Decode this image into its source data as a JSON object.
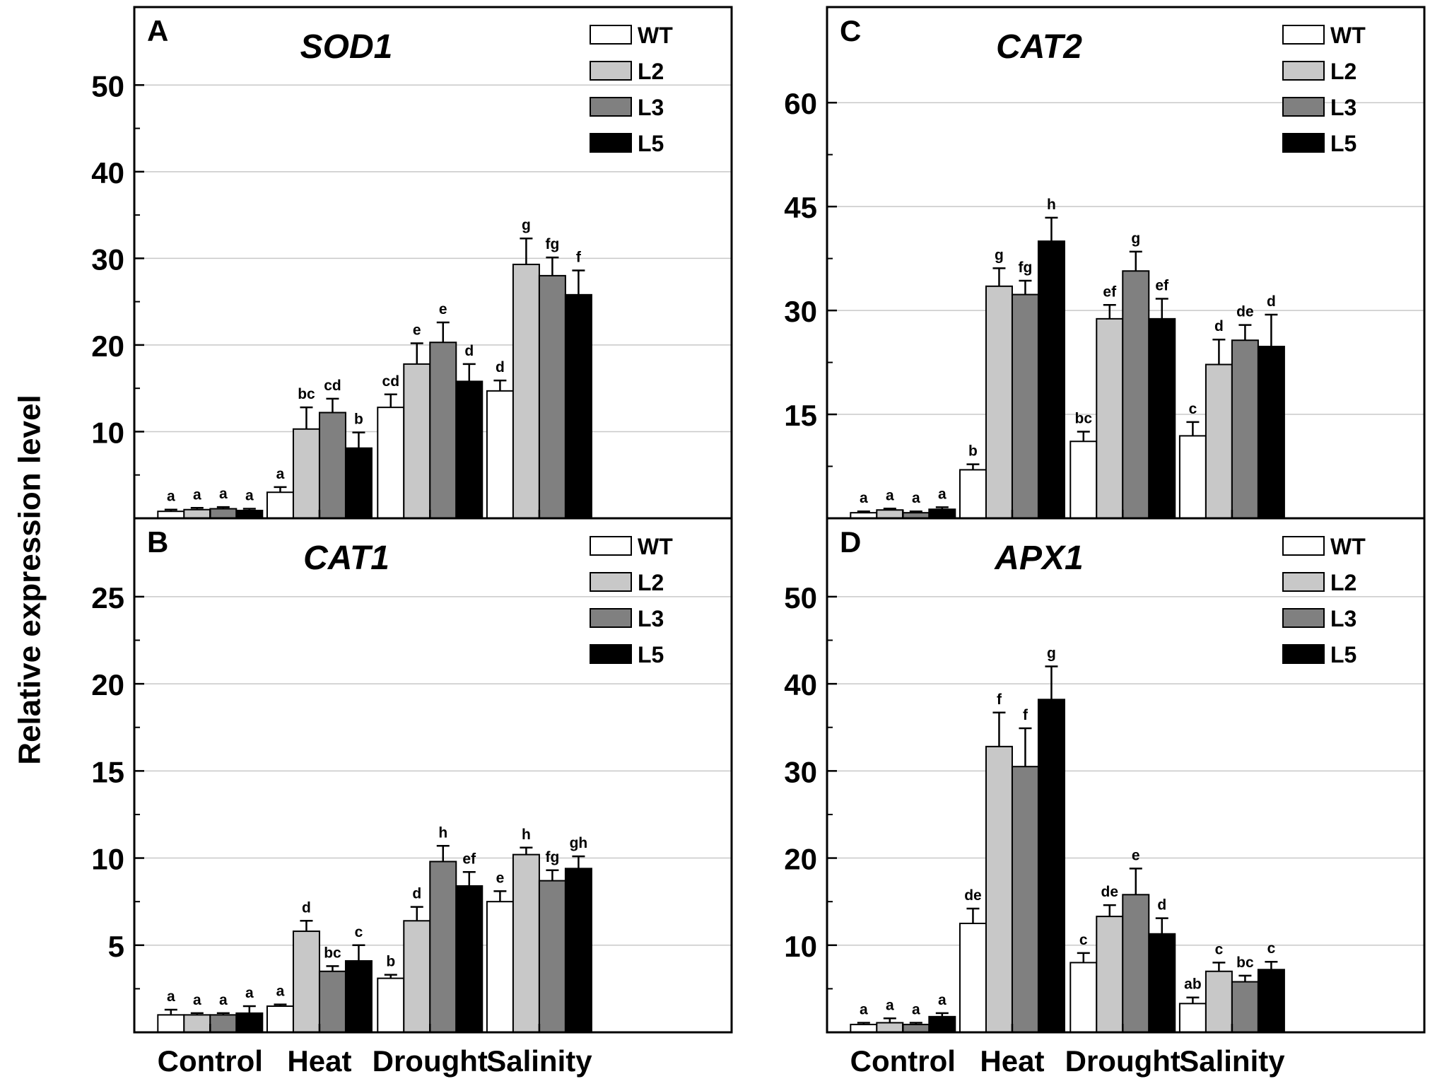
{
  "y_axis_label": "Relative expression level",
  "conditions": [
    "Control",
    "Heat",
    "Drought",
    "Salinity"
  ],
  "series_names": [
    "WT",
    "L2",
    "L3",
    "L5"
  ],
  "colors": {
    "WT": "#ffffff",
    "L2": "#c8c8c8",
    "L3": "#808080",
    "L5": "#000000",
    "grid": "#c8c8c8",
    "axis": "#000000"
  },
  "chart_data": [
    {
      "id": "A",
      "panel_label": "A",
      "title": "SOD1",
      "type": "bar",
      "categories": [
        "Control",
        "Heat",
        "Drought",
        "Salinity"
      ],
      "ylim": [
        0,
        59
      ],
      "yticks": [
        10,
        20,
        30,
        40,
        50
      ],
      "grid": true,
      "legend": "top-right",
      "series": [
        {
          "name": "WT",
          "values": [
            0.8,
            3.0,
            12.8,
            14.7
          ],
          "errors": [
            0.2,
            0.6,
            1.5,
            1.2
          ],
          "letters": [
            "a",
            "a",
            "cd",
            "d"
          ]
        },
        {
          "name": "L2",
          "values": [
            1.0,
            10.3,
            17.8,
            29.3
          ],
          "errors": [
            0.2,
            2.5,
            2.4,
            3.0
          ],
          "letters": [
            "a",
            "bc",
            "e",
            "g"
          ]
        },
        {
          "name": "L3",
          "values": [
            1.1,
            12.2,
            20.3,
            28.0
          ],
          "errors": [
            0.2,
            1.6,
            2.3,
            2.1
          ],
          "letters": [
            "a",
            "cd",
            "e",
            "fg"
          ]
        },
        {
          "name": "L5",
          "values": [
            0.9,
            8.1,
            15.8,
            25.8
          ],
          "errors": [
            0.2,
            1.8,
            2.0,
            2.8
          ],
          "letters": [
            "a",
            "b",
            "d",
            "f"
          ]
        }
      ]
    },
    {
      "id": "B",
      "panel_label": "B",
      "title": "CAT1",
      "type": "bar",
      "categories": [
        "Control",
        "Heat",
        "Drought",
        "Salinity"
      ],
      "ylim": [
        0,
        29.5
      ],
      "yticks": [
        5,
        10,
        15,
        20,
        25
      ],
      "grid": true,
      "legend": "top-right",
      "series": [
        {
          "name": "WT",
          "values": [
            1.0,
            1.5,
            3.1,
            7.5
          ],
          "errors": [
            0.3,
            0.1,
            0.2,
            0.6
          ],
          "letters": [
            "a",
            "a",
            "b",
            "e"
          ]
        },
        {
          "name": "L2",
          "values": [
            1.0,
            5.8,
            6.4,
            10.2
          ],
          "errors": [
            0.1,
            0.6,
            0.8,
            0.4
          ],
          "letters": [
            "a",
            "d",
            "d",
            "h"
          ]
        },
        {
          "name": "L3",
          "values": [
            1.0,
            3.5,
            9.8,
            8.7
          ],
          "errors": [
            0.1,
            0.3,
            0.9,
            0.6
          ],
          "letters": [
            "a",
            "bc",
            "h",
            "fg"
          ]
        },
        {
          "name": "L5",
          "values": [
            1.1,
            4.1,
            8.4,
            9.4
          ],
          "errors": [
            0.4,
            0.9,
            0.8,
            0.7
          ],
          "letters": [
            "a",
            "c",
            "ef",
            "gh"
          ]
        }
      ]
    },
    {
      "id": "C",
      "panel_label": "C",
      "title": "CAT2",
      "type": "bar",
      "categories": [
        "Control",
        "Heat",
        "Drought",
        "Salinity"
      ],
      "ylim": [
        0,
        73.8
      ],
      "yticks": [
        15,
        30,
        45,
        60
      ],
      "grid": true,
      "legend": "top-right",
      "series": [
        {
          "name": "WT",
          "values": [
            0.8,
            7.0,
            11.1,
            11.9
          ],
          "errors": [
            0.2,
            0.8,
            1.4,
            2.0
          ],
          "letters": [
            "a",
            "b",
            "bc",
            "c"
          ]
        },
        {
          "name": "L2",
          "values": [
            1.2,
            33.5,
            28.8,
            22.2
          ],
          "errors": [
            0.2,
            2.6,
            2.0,
            3.6
          ],
          "letters": [
            "a",
            "g",
            "ef",
            "d"
          ]
        },
        {
          "name": "L3",
          "values": [
            0.8,
            32.3,
            35.7,
            25.7
          ],
          "errors": [
            0.2,
            2.0,
            2.8,
            2.2
          ],
          "letters": [
            "a",
            "fg",
            "g",
            "de"
          ]
        },
        {
          "name": "L5",
          "values": [
            1.3,
            40.0,
            28.8,
            24.8
          ],
          "errors": [
            0.3,
            3.4,
            2.9,
            4.6
          ],
          "letters": [
            "a",
            "h",
            "ef",
            "d"
          ]
        }
      ]
    },
    {
      "id": "D",
      "panel_label": "D",
      "title": "APX1",
      "type": "bar",
      "categories": [
        "Control",
        "Heat",
        "Drought",
        "Salinity"
      ],
      "ylim": [
        0,
        59
      ],
      "yticks": [
        10,
        20,
        30,
        40,
        50
      ],
      "grid": true,
      "legend": "top-right",
      "series": [
        {
          "name": "WT",
          "values": [
            0.9,
            12.5,
            8.0,
            3.3
          ],
          "errors": [
            0.2,
            1.7,
            1.1,
            0.7
          ],
          "letters": [
            "a",
            "de",
            "c",
            "ab"
          ]
        },
        {
          "name": "L2",
          "values": [
            1.1,
            32.8,
            13.3,
            7.0
          ],
          "errors": [
            0.5,
            3.9,
            1.3,
            1.0
          ],
          "letters": [
            "a",
            "f",
            "de",
            "c"
          ]
        },
        {
          "name": "L3",
          "values": [
            0.9,
            30.5,
            15.8,
            5.8
          ],
          "errors": [
            0.2,
            4.4,
            3.0,
            0.7
          ],
          "letters": [
            "a",
            "f",
            "e",
            "bc"
          ]
        },
        {
          "name": "L5",
          "values": [
            1.8,
            38.2,
            11.3,
            7.2
          ],
          "errors": [
            0.4,
            3.8,
            1.8,
            0.9
          ],
          "letters": [
            "a",
            "g",
            "d",
            "c"
          ]
        }
      ]
    }
  ]
}
